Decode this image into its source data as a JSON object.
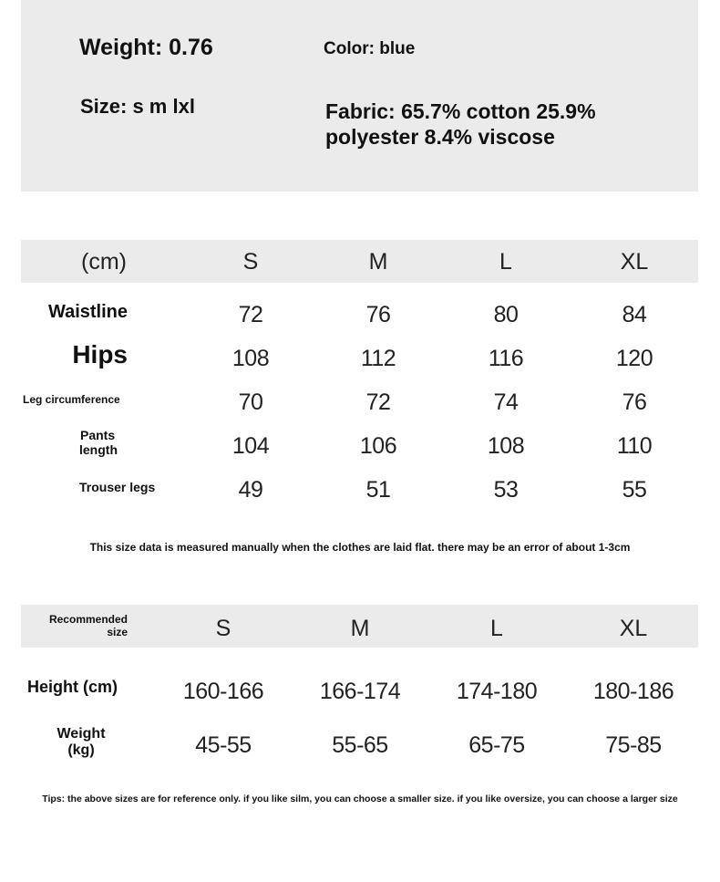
{
  "info": {
    "weight": "Weight: 0.76",
    "color": "Color: blue",
    "size": "Size: s m lxl",
    "fabric_line1": "Fabric: 65.7% cotton 25.9%",
    "fabric_line2": "polyester 8.4% viscose"
  },
  "measurements": {
    "unit_header": "(cm)",
    "sizes": [
      "S",
      "M",
      "L",
      "XL"
    ],
    "rows": [
      {
        "label": "Waistline",
        "values": [
          "72",
          "76",
          "80",
          "84"
        ]
      },
      {
        "label": "Hips",
        "values": [
          "108",
          "112",
          "116",
          "120"
        ]
      },
      {
        "label": "Leg circumference",
        "values": [
          "70",
          "72",
          "74",
          "76"
        ]
      },
      {
        "label_line1": "Pants",
        "label_line2": "length",
        "values": [
          "104",
          "106",
          "108",
          "110"
        ]
      },
      {
        "label": "Trouser legs",
        "values": [
          "49",
          "51",
          "53",
          "55"
        ]
      }
    ],
    "note": "This size data is measured manually when the clothes are laid flat. there may be an error of about 1-3cm"
  },
  "recommendation": {
    "header_line1": "Recommended",
    "header_line2": "size",
    "sizes": [
      "S",
      "M",
      "L",
      "XL"
    ],
    "height": {
      "label": "Height (cm)",
      "values": [
        "160-166",
        "166-174",
        "174-180",
        "180-186"
      ]
    },
    "weight": {
      "label_line1": "Weight",
      "label_line2": "(kg)",
      "values": [
        "45-55",
        "55-65",
        "65-75",
        "75-85"
      ]
    },
    "tips": "Tips: the above sizes are for reference only. if you like silm, you can choose a smaller size. if you like oversize, you can choose a larger size"
  }
}
